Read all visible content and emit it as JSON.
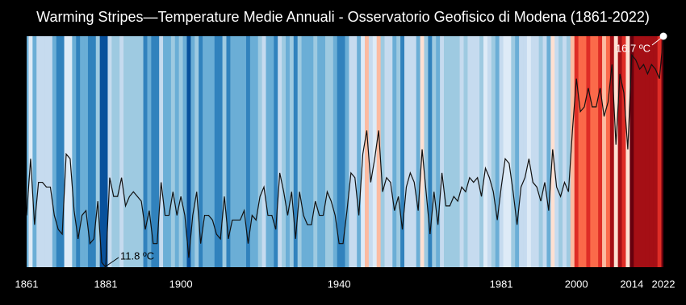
{
  "chart_data": {
    "type": "stripes-line",
    "title": "Warming Stripes—Temperature Medie Annuali - Osservatorio Geofisico di Modena (1861-2022)",
    "x": [
      1861,
      1862,
      1863,
      1864,
      1865,
      1866,
      1867,
      1868,
      1869,
      1870,
      1871,
      1872,
      1873,
      1874,
      1875,
      1876,
      1877,
      1878,
      1879,
      1880,
      1881,
      1882,
      1883,
      1884,
      1885,
      1886,
      1887,
      1888,
      1889,
      1890,
      1891,
      1892,
      1893,
      1894,
      1895,
      1896,
      1897,
      1898,
      1899,
      1900,
      1901,
      1902,
      1903,
      1904,
      1905,
      1906,
      1907,
      1908,
      1909,
      1910,
      1911,
      1912,
      1913,
      1914,
      1915,
      1916,
      1917,
      1918,
      1919,
      1920,
      1921,
      1922,
      1923,
      1924,
      1925,
      1926,
      1927,
      1928,
      1929,
      1930,
      1931,
      1932,
      1933,
      1934,
      1935,
      1936,
      1937,
      1938,
      1939,
      1940,
      1941,
      1942,
      1943,
      1944,
      1945,
      1946,
      1947,
      1948,
      1949,
      1950,
      1951,
      1952,
      1953,
      1954,
      1955,
      1956,
      1957,
      1958,
      1959,
      1960,
      1961,
      1962,
      1963,
      1964,
      1965,
      1966,
      1967,
      1968,
      1969,
      1970,
      1971,
      1972,
      1973,
      1974,
      1975,
      1976,
      1977,
      1978,
      1979,
      1980,
      1981,
      1982,
      1983,
      1984,
      1985,
      1986,
      1987,
      1988,
      1989,
      1990,
      1991,
      1992,
      1993,
      1994,
      1995,
      1996,
      1997,
      1998,
      1999,
      2000,
      2001,
      2002,
      2003,
      2004,
      2005,
      2006,
      2007,
      2008,
      2009,
      2010,
      2011,
      2012,
      2013,
      2014,
      2015,
      2016,
      2017,
      2018,
      2019,
      2020,
      2021,
      2022
    ],
    "values": [
      12.9,
      14.1,
      12.7,
      13.6,
      13.6,
      13.5,
      13.5,
      12.9,
      12.6,
      12.5,
      14.2,
      14.1,
      13.0,
      12.4,
      12.9,
      13.0,
      12.3,
      12.4,
      13.2,
      11.9,
      11.8,
      13.7,
      13.3,
      13.3,
      13.7,
      13.1,
      13.3,
      13.4,
      13.3,
      13.2,
      12.6,
      13.0,
      12.3,
      12.3,
      13.6,
      12.9,
      12.9,
      13.4,
      12.9,
      13.3,
      12.9,
      12.0,
      12.9,
      13.4,
      12.3,
      12.9,
      12.9,
      12.8,
      12.5,
      12.4,
      13.3,
      12.4,
      12.8,
      12.8,
      12.8,
      13.0,
      12.3,
      12.9,
      12.8,
      13.3,
      13.5,
      12.9,
      12.9,
      12.6,
      13.8,
      13.4,
      12.9,
      13.4,
      12.4,
      13.4,
      12.9,
      12.7,
      12.7,
      13.2,
      12.9,
      12.9,
      13.4,
      13.2,
      12.9,
      12.3,
      12.3,
      13.0,
      13.8,
      13.7,
      12.9,
      14.2,
      14.7,
      13.6,
      14.1,
      14.7,
      13.4,
      13.7,
      13.6,
      13.0,
      13.3,
      12.6,
      13.5,
      13.8,
      13.6,
      13.0,
      14.3,
      13.4,
      12.5,
      13.4,
      12.7,
      13.8,
      13.1,
      13.1,
      13.3,
      13.2,
      13.5,
      13.4,
      13.7,
      13.6,
      13.7,
      13.3,
      13.9,
      13.7,
      13.4,
      12.8,
      13.5,
      14.1,
      14.0,
      13.4,
      12.7,
      13.5,
      13.7,
      14.1,
      13.6,
      13.5,
      13.2,
      13.6,
      13.0,
      14.3,
      13.5,
      13.3,
      13.6,
      13.4,
      14.7,
      15.8,
      15.1,
      15.2,
      15.6,
      15.2,
      15.2,
      15.6,
      15.0,
      15.3,
      16.1,
      14.4,
      15.9,
      15.5,
      14.3,
      16.3,
      16.2,
      16.0,
      16.1,
      15.9,
      16.1,
      16.0,
      15.8,
      16.7
    ],
    "xlim": [
      1861,
      2022
    ],
    "xticks": [
      1861,
      1881,
      1900,
      1940,
      1981,
      2000,
      2014,
      2022
    ],
    "ylim": [
      11.8,
      16.7
    ],
    "line_color": "#111111",
    "cmap": [
      "#08519c",
      "#3182bd",
      "#6baed6",
      "#9ecae1",
      "#c6dbef",
      "#deebf7",
      "#fee0d2",
      "#fcbba1",
      "#fb6a4a",
      "#de2d26",
      "#a50f15",
      "#67000d"
    ],
    "annotations": [
      {
        "text": "11.8 ºC",
        "x": 1881,
        "y": 11.8
      },
      {
        "text": "16.7 ºC",
        "x": 2022,
        "y": 16.7
      }
    ]
  }
}
